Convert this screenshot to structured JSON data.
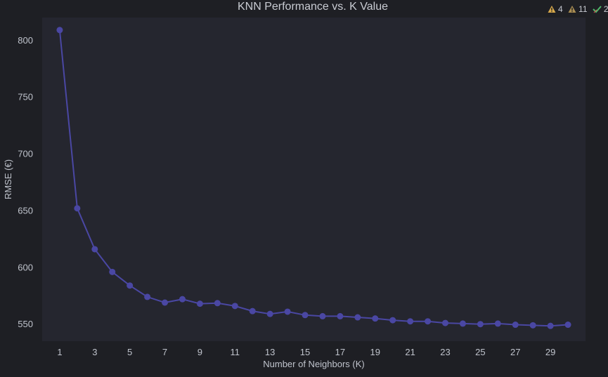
{
  "toolbar": {
    "warning_count_a": "4",
    "warning_count_b": "11",
    "check_count": "2",
    "warning_color": "#d7a94b",
    "check_color": "#4fb86a"
  },
  "chart_data": {
    "type": "line",
    "title": "KNN Performance vs. K Value",
    "xlabel": "Number of Neighbors (K)",
    "ylabel": "RMSE (€)",
    "xlim": [
      0,
      31
    ],
    "ylim": [
      535,
      820
    ],
    "x_ticks": [
      1,
      3,
      5,
      7,
      9,
      11,
      13,
      15,
      17,
      19,
      21,
      23,
      25,
      27,
      29
    ],
    "y_ticks": [
      550,
      600,
      650,
      700,
      750,
      800
    ],
    "grid": false,
    "colors": {
      "series": "#4a47a3",
      "plot_background": "#25262f",
      "page_background": "#1e1f24"
    },
    "x": [
      1,
      2,
      3,
      4,
      5,
      6,
      7,
      8,
      9,
      10,
      11,
      12,
      13,
      14,
      15,
      16,
      17,
      18,
      19,
      20,
      21,
      22,
      23,
      24,
      25,
      26,
      27,
      28,
      29,
      30
    ],
    "series": [
      {
        "values": [
          809,
          652,
          616,
          596,
          584,
          574,
          569,
          572,
          568,
          568.5,
          566,
          561.5,
          559,
          561,
          558,
          557,
          557,
          556,
          555,
          553.5,
          552.5,
          552.5,
          551,
          550.5,
          550,
          550.5,
          549.5,
          549,
          548.5,
          549.5
        ]
      }
    ]
  }
}
